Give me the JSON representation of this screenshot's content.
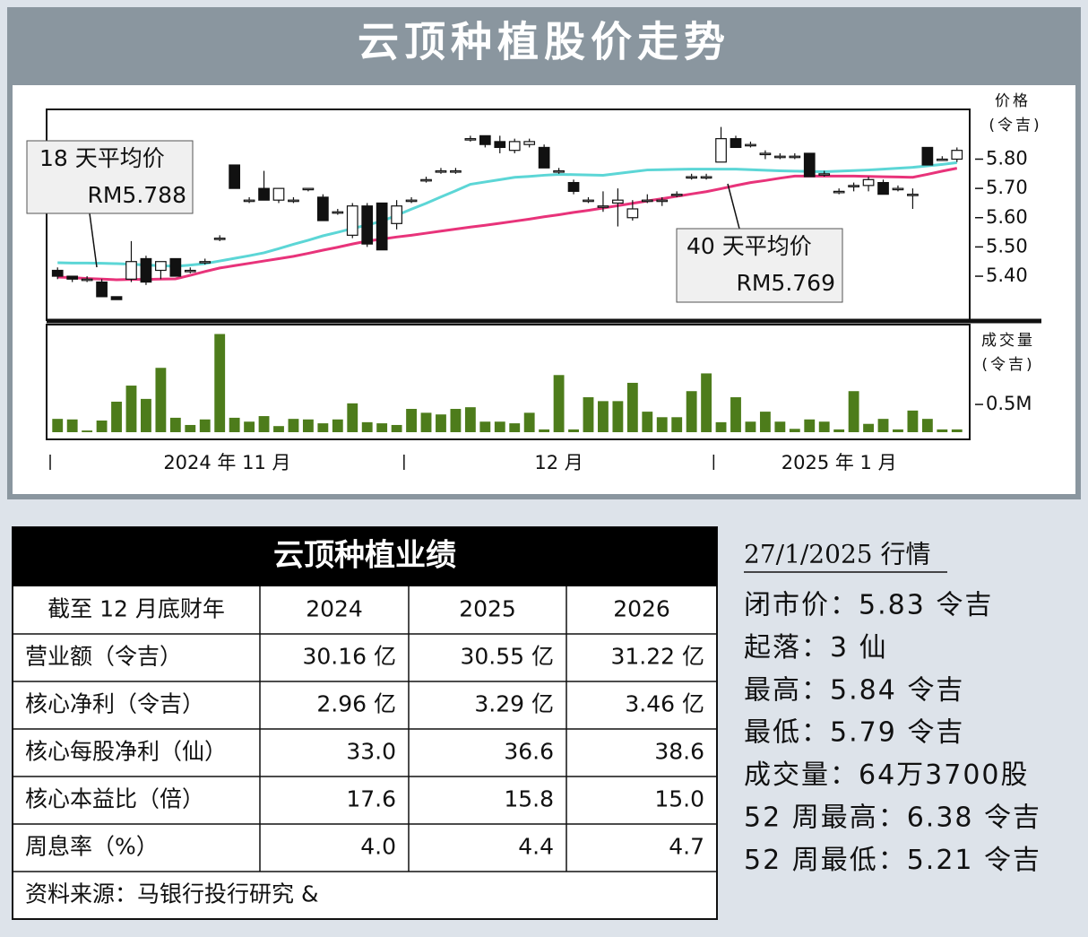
{
  "title": "云顶种植股价走势",
  "chart_data": {
    "type": "candlestick",
    "y_label": "价格",
    "y_unit": "(令吉)",
    "ylim": [
      5.25,
      5.97
    ],
    "yticks": [
      {
        "value": 5.8,
        "label": "5.80"
      },
      {
        "value": 5.7,
        "label": "5.70"
      },
      {
        "value": 5.6,
        "label": "5.60"
      },
      {
        "value": 5.5,
        "label": "5.50"
      },
      {
        "value": 5.4,
        "label": "5.40"
      }
    ],
    "months": [
      {
        "label": "2024 年 11 月",
        "sessions": 24
      },
      {
        "label": "12 月",
        "sessions": 21
      },
      {
        "label": "2025 年 1 月",
        "sessions": 17
      }
    ],
    "up_color": "#ffffff",
    "down_color": "#111111",
    "open": [
      5.42,
      5.4,
      5.39,
      5.38,
      5.33,
      5.39,
      5.46,
      5.42,
      5.46,
      5.42,
      5.45,
      5.53,
      5.78,
      5.66,
      5.7,
      5.66,
      5.66,
      5.7,
      5.67,
      5.62,
      5.54,
      5.64,
      5.65,
      5.58,
      5.66,
      5.73,
      5.76,
      5.76,
      5.87,
      5.88,
      5.86,
      5.83,
      5.85,
      5.84,
      5.76,
      5.72,
      5.66,
      5.64,
      5.65,
      5.6,
      5.66,
      5.66,
      5.68,
      5.74,
      5.74,
      5.79,
      5.87,
      5.85,
      5.82,
      5.81,
      5.81,
      5.82,
      5.75,
      5.69,
      5.71,
      5.71,
      5.72,
      5.7,
      5.68,
      5.84,
      5.8,
      5.8
    ],
    "high": [
      5.43,
      5.4,
      5.4,
      5.39,
      5.33,
      5.52,
      5.47,
      5.45,
      5.46,
      5.43,
      5.46,
      5.54,
      5.78,
      5.67,
      5.76,
      5.7,
      5.67,
      5.7,
      5.68,
      5.63,
      5.65,
      5.65,
      5.65,
      5.66,
      5.67,
      5.74,
      5.77,
      5.77,
      5.88,
      5.88,
      5.88,
      5.87,
      5.87,
      5.85,
      5.77,
      5.73,
      5.67,
      5.69,
      5.7,
      5.66,
      5.68,
      5.67,
      5.69,
      5.75,
      5.75,
      5.91,
      5.88,
      5.86,
      5.83,
      5.82,
      5.82,
      5.82,
      5.76,
      5.7,
      5.72,
      5.74,
      5.73,
      5.71,
      5.7,
      5.84,
      5.81,
      5.84
    ],
    "low": [
      5.39,
      5.38,
      5.38,
      5.33,
      5.32,
      5.38,
      5.37,
      5.39,
      5.4,
      5.41,
      5.44,
      5.52,
      5.7,
      5.65,
      5.66,
      5.65,
      5.65,
      5.69,
      5.59,
      5.61,
      5.53,
      5.5,
      5.49,
      5.56,
      5.65,
      5.72,
      5.75,
      5.75,
      5.86,
      5.84,
      5.82,
      5.82,
      5.84,
      5.77,
      5.75,
      5.68,
      5.65,
      5.62,
      5.57,
      5.59,
      5.65,
      5.64,
      5.67,
      5.73,
      5.73,
      5.79,
      5.84,
      5.84,
      5.8,
      5.8,
      5.8,
      5.74,
      5.74,
      5.68,
      5.69,
      5.69,
      5.68,
      5.69,
      5.63,
      5.78,
      5.8,
      5.79
    ],
    "close": [
      5.4,
      5.39,
      5.39,
      5.33,
      5.32,
      5.45,
      5.38,
      5.45,
      5.4,
      5.42,
      5.45,
      5.53,
      5.7,
      5.66,
      5.66,
      5.7,
      5.66,
      5.7,
      5.59,
      5.62,
      5.64,
      5.51,
      5.49,
      5.64,
      5.66,
      5.73,
      5.76,
      5.76,
      5.87,
      5.85,
      5.84,
      5.86,
      5.86,
      5.77,
      5.76,
      5.69,
      5.66,
      5.64,
      5.66,
      5.63,
      5.66,
      5.66,
      5.68,
      5.74,
      5.74,
      5.87,
      5.84,
      5.85,
      5.82,
      5.81,
      5.81,
      5.74,
      5.75,
      5.69,
      5.71,
      5.73,
      5.68,
      5.7,
      5.68,
      5.78,
      5.8,
      5.83
    ],
    "series": [
      {
        "name": "18 天平均价",
        "color": "#5cd6d6",
        "end_label": "RM5.788",
        "values": [
          5.446,
          5.445,
          5.445,
          5.444,
          5.443,
          5.441,
          5.438,
          5.436,
          5.434,
          5.438,
          5.443,
          5.452,
          5.461,
          5.47,
          5.48,
          5.494,
          5.509,
          5.523,
          5.538,
          5.55,
          5.563,
          5.575,
          5.588,
          5.608,
          5.629,
          5.649,
          5.671,
          5.692,
          5.714,
          5.722,
          5.73,
          5.738,
          5.741,
          5.745,
          5.748,
          5.747,
          5.746,
          5.745,
          5.751,
          5.757,
          5.763,
          5.764,
          5.765,
          5.766,
          5.766,
          5.766,
          5.766,
          5.764,
          5.762,
          5.76,
          5.759,
          5.758,
          5.757,
          5.759,
          5.761,
          5.763,
          5.766,
          5.769,
          5.772,
          5.777,
          5.782,
          5.788
        ]
      },
      {
        "name": "40 天平均价",
        "color": "#e8337a",
        "end_label": "RM5.769",
        "values": [
          5.397,
          5.395,
          5.392,
          5.39,
          5.388,
          5.389,
          5.389,
          5.39,
          5.391,
          5.403,
          5.416,
          5.428,
          5.436,
          5.444,
          5.452,
          5.46,
          5.468,
          5.478,
          5.489,
          5.499,
          5.51,
          5.52,
          5.527,
          5.534,
          5.54,
          5.547,
          5.554,
          5.561,
          5.568,
          5.574,
          5.581,
          5.588,
          5.595,
          5.603,
          5.61,
          5.618,
          5.625,
          5.633,
          5.641,
          5.649,
          5.657,
          5.665,
          5.673,
          5.681,
          5.689,
          5.699,
          5.71,
          5.72,
          5.727,
          5.735,
          5.742,
          5.742,
          5.742,
          5.742,
          5.742,
          5.741,
          5.74,
          5.739,
          5.738,
          5.748,
          5.759,
          5.769
        ]
      }
    ],
    "volume": {
      "label": "成交量",
      "unit": "(令吉)",
      "color": "#4d7c1b",
      "ylim": [
        0,
        1.94
      ],
      "yticks": [
        {
          "value": 0.5,
          "label": "0.5M"
        }
      ],
      "values": [
        0.24,
        0.23,
        0.03,
        0.21,
        0.55,
        0.84,
        0.6,
        1.16,
        0.26,
        0.13,
        0.23,
        1.77,
        0.26,
        0.19,
        0.29,
        0.11,
        0.24,
        0.23,
        0.16,
        0.23,
        0.52,
        0.18,
        0.16,
        0.13,
        0.42,
        0.35,
        0.32,
        0.42,
        0.45,
        0.19,
        0.19,
        0.16,
        0.35,
        0.05,
        1.03,
        0.05,
        0.63,
        0.56,
        0.56,
        0.89,
        0.37,
        0.27,
        0.27,
        0.74,
        1.06,
        0.18,
        0.63,
        0.19,
        0.37,
        0.19,
        0.06,
        0.23,
        0.19,
        0.05,
        0.74,
        0.15,
        0.24,
        0.05,
        0.39,
        0.24,
        0.05,
        0.05
      ]
    }
  },
  "table": {
    "title": "云顶种植业绩",
    "header": [
      "截至 12 月底财年",
      "2024",
      "2025",
      "2026"
    ],
    "rows": [
      [
        "营业额（令吉）",
        "30.16 亿",
        "30.55 亿",
        "31.22 亿"
      ],
      [
        "核心净利（令吉）",
        "2.96 亿",
        "3.29 亿",
        "3.46 亿"
      ],
      [
        "核心每股净利（仙）",
        "33.0",
        "36.6",
        "38.6"
      ],
      [
        "核心本益比（倍）",
        "17.6",
        "15.8",
        "15.0"
      ],
      [
        "周息率（%）",
        "4.0",
        "4.4",
        "4.7"
      ]
    ],
    "source": "资料来源：马银行投行研究 &"
  },
  "quote": {
    "heading": "27/1/2025 行情",
    "items": [
      "闭市价：5.83 令吉",
      "起落：3 仙",
      "最高：5.84 令吉",
      "最低：5.79 令吉",
      "成交量：64万3700股",
      "52 周最高：6.38 令吉",
      "52 周最低：5.21 令吉"
    ]
  }
}
